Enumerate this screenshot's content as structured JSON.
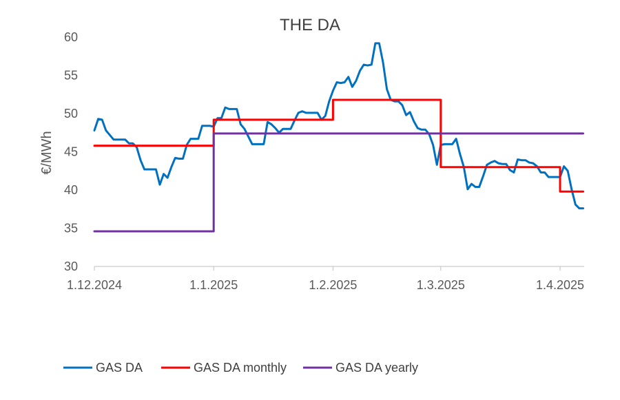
{
  "chart_data": {
    "type": "line",
    "title": "THE DA",
    "ylabel": "€/MWh",
    "xlabel": "",
    "ylim": [
      30,
      60
    ],
    "yticks": [
      30,
      35,
      40,
      45,
      50,
      55,
      60
    ],
    "xlim": [
      "2024-12-01",
      "2025-04-08"
    ],
    "xticks": [
      "2024-12-01",
      "2025-01-01",
      "2025-02-01",
      "2025-03-01",
      "2025-04-01"
    ],
    "xtick_labels": [
      "1.12.2024",
      "1.1.2025",
      "1.2.2025",
      "1.3.2025",
      "1.4.2025"
    ],
    "grid": false,
    "legend_position": "bottom",
    "series": [
      {
        "name": "GAS DA",
        "color": "#0070c0",
        "step": false,
        "points": [
          [
            "2024-12-01",
            47.8
          ],
          [
            "2024-12-02",
            49.3
          ],
          [
            "2024-12-03",
            49.2
          ],
          [
            "2024-12-04",
            47.8
          ],
          [
            "2024-12-05",
            47.2
          ],
          [
            "2024-12-06",
            46.6
          ],
          [
            "2024-12-07",
            46.6
          ],
          [
            "2024-12-08",
            46.6
          ],
          [
            "2024-12-09",
            46.6
          ],
          [
            "2024-12-10",
            46.1
          ],
          [
            "2024-12-11",
            46.1
          ],
          [
            "2024-12-12",
            45.6
          ],
          [
            "2024-12-13",
            43.9
          ],
          [
            "2024-12-14",
            42.7
          ],
          [
            "2024-12-15",
            42.7
          ],
          [
            "2024-12-16",
            42.7
          ],
          [
            "2024-12-17",
            42.7
          ],
          [
            "2024-12-18",
            40.7
          ],
          [
            "2024-12-19",
            42.1
          ],
          [
            "2024-12-20",
            41.6
          ],
          [
            "2024-12-21",
            43.0
          ],
          [
            "2024-12-22",
            44.2
          ],
          [
            "2024-12-23",
            44.1
          ],
          [
            "2024-12-24",
            44.1
          ],
          [
            "2024-12-25",
            45.9
          ],
          [
            "2024-12-26",
            46.7
          ],
          [
            "2024-12-27",
            46.7
          ],
          [
            "2024-12-28",
            46.7
          ],
          [
            "2024-12-29",
            48.4
          ],
          [
            "2024-12-30",
            48.4
          ],
          [
            "2024-12-31",
            48.4
          ],
          [
            "2025-01-01",
            48.3
          ],
          [
            "2025-01-02",
            49.4
          ],
          [
            "2025-01-03",
            49.4
          ],
          [
            "2025-01-04",
            50.8
          ],
          [
            "2025-01-05",
            50.6
          ],
          [
            "2025-01-06",
            50.6
          ],
          [
            "2025-01-07",
            50.6
          ],
          [
            "2025-01-08",
            48.6
          ],
          [
            "2025-01-09",
            48.0
          ],
          [
            "2025-01-10",
            47.0
          ],
          [
            "2025-01-11",
            46.0
          ],
          [
            "2025-01-12",
            46.0
          ],
          [
            "2025-01-13",
            46.0
          ],
          [
            "2025-01-14",
            46.0
          ],
          [
            "2025-01-15",
            48.9
          ],
          [
            "2025-01-16",
            48.6
          ],
          [
            "2025-01-17",
            48.1
          ],
          [
            "2025-01-18",
            47.5
          ],
          [
            "2025-01-19",
            48.0
          ],
          [
            "2025-01-20",
            48.0
          ],
          [
            "2025-01-21",
            48.0
          ],
          [
            "2025-01-22",
            49.1
          ],
          [
            "2025-01-23",
            50.1
          ],
          [
            "2025-01-24",
            50.3
          ],
          [
            "2025-01-25",
            50.1
          ],
          [
            "2025-01-26",
            50.1
          ],
          [
            "2025-01-27",
            50.1
          ],
          [
            "2025-01-28",
            50.1
          ],
          [
            "2025-01-29",
            49.2
          ],
          [
            "2025-01-30",
            49.7
          ],
          [
            "2025-01-31",
            51.6
          ],
          [
            "2025-02-01",
            53.0
          ],
          [
            "2025-02-02",
            54.1
          ],
          [
            "2025-02-03",
            54.0
          ],
          [
            "2025-02-04",
            54.1
          ],
          [
            "2025-02-05",
            54.8
          ],
          [
            "2025-02-06",
            53.5
          ],
          [
            "2025-02-07",
            54.3
          ],
          [
            "2025-02-08",
            55.6
          ],
          [
            "2025-02-09",
            56.4
          ],
          [
            "2025-02-10",
            56.3
          ],
          [
            "2025-02-11",
            56.4
          ],
          [
            "2025-02-12",
            59.2
          ],
          [
            "2025-02-13",
            59.2
          ],
          [
            "2025-02-14",
            56.7
          ],
          [
            "2025-02-15",
            53.2
          ],
          [
            "2025-02-16",
            51.8
          ],
          [
            "2025-02-17",
            51.6
          ],
          [
            "2025-02-18",
            51.6
          ],
          [
            "2025-02-19",
            51.1
          ],
          [
            "2025-02-20",
            49.8
          ],
          [
            "2025-02-21",
            50.2
          ],
          [
            "2025-02-22",
            49.0
          ],
          [
            "2025-02-23",
            48.1
          ],
          [
            "2025-02-24",
            47.9
          ],
          [
            "2025-02-25",
            47.9
          ],
          [
            "2025-02-26",
            47.3
          ],
          [
            "2025-02-27",
            45.9
          ],
          [
            "2025-02-28",
            43.3
          ],
          [
            "2025-03-01",
            45.9
          ],
          [
            "2025-03-02",
            46.0
          ],
          [
            "2025-03-03",
            46.0
          ],
          [
            "2025-03-04",
            46.0
          ],
          [
            "2025-03-05",
            46.7
          ],
          [
            "2025-03-06",
            44.7
          ],
          [
            "2025-03-07",
            43.0
          ],
          [
            "2025-03-08",
            40.1
          ],
          [
            "2025-03-09",
            40.8
          ],
          [
            "2025-03-10",
            40.4
          ],
          [
            "2025-03-11",
            40.4
          ],
          [
            "2025-03-12",
            41.8
          ],
          [
            "2025-03-13",
            43.3
          ],
          [
            "2025-03-14",
            43.6
          ],
          [
            "2025-03-15",
            43.8
          ],
          [
            "2025-03-16",
            43.5
          ],
          [
            "2025-03-17",
            43.4
          ],
          [
            "2025-03-18",
            43.4
          ],
          [
            "2025-03-19",
            42.6
          ],
          [
            "2025-03-20",
            42.3
          ],
          [
            "2025-03-21",
            44.0
          ],
          [
            "2025-03-22",
            43.9
          ],
          [
            "2025-03-23",
            43.9
          ],
          [
            "2025-03-24",
            43.6
          ],
          [
            "2025-03-25",
            43.5
          ],
          [
            "2025-03-26",
            43.1
          ],
          [
            "2025-03-27",
            42.3
          ],
          [
            "2025-03-28",
            42.3
          ],
          [
            "2025-03-29",
            41.7
          ],
          [
            "2025-03-30",
            41.7
          ],
          [
            "2025-03-31",
            41.7
          ],
          [
            "2025-04-01",
            41.7
          ],
          [
            "2025-04-02",
            43.1
          ],
          [
            "2025-04-03",
            42.5
          ],
          [
            "2025-04-04",
            40.1
          ],
          [
            "2025-04-05",
            38.1
          ],
          [
            "2025-04-06",
            37.6
          ],
          [
            "2025-04-07",
            37.6
          ]
        ]
      },
      {
        "name": "GAS DA monthly",
        "color": "#ff0000",
        "step": true,
        "points": [
          [
            "2024-12-01",
            45.8
          ],
          [
            "2025-01-01",
            49.2
          ],
          [
            "2025-02-01",
            51.8
          ],
          [
            "2025-03-01",
            43.0
          ],
          [
            "2025-04-01",
            39.8
          ],
          [
            "2025-04-07",
            39.8
          ]
        ]
      },
      {
        "name": "GAS DA yearly",
        "color": "#7030a0",
        "step": true,
        "points": [
          [
            "2024-12-01",
            34.6
          ],
          [
            "2025-01-01",
            47.4
          ],
          [
            "2025-04-07",
            47.4
          ]
        ]
      }
    ]
  }
}
